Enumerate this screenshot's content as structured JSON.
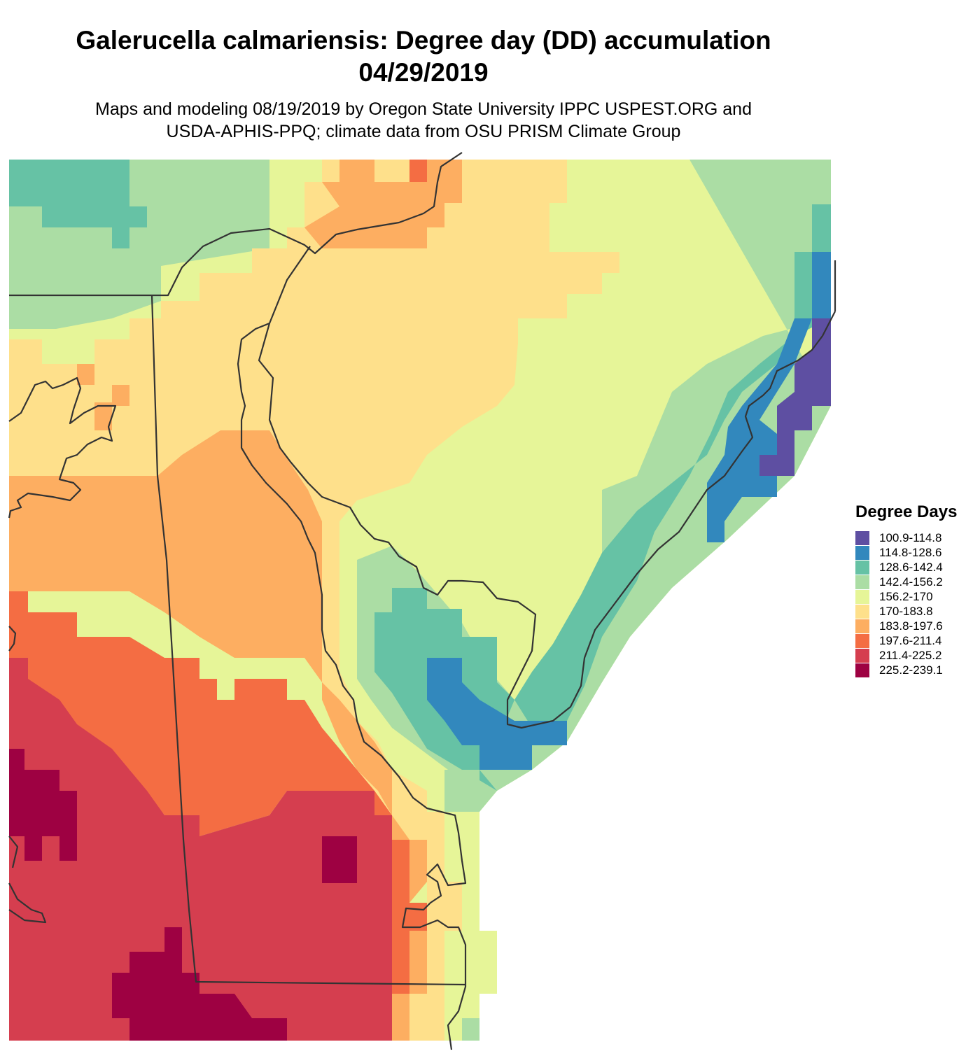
{
  "title": {
    "line1": "Galerucella calmariensis: Degree day (DD) accumulation",
    "line2": "04/29/2019"
  },
  "subtitle": {
    "line1": "Maps and modeling 08/19/2019 by Oregon State University IPPC USPEST.ORG and",
    "line2": "USDA-APHIS-PPQ; climate data from OSU PRISM Climate Group"
  },
  "legend": {
    "title": "Degree Days",
    "items": [
      {
        "label": "100.9-114.8",
        "color": "#5E4FA2"
      },
      {
        "label": "114.8-128.6",
        "color": "#3288BD"
      },
      {
        "label": "128.6-142.4",
        "color": "#66C2A5"
      },
      {
        "label": "142.4-156.2",
        "color": "#ABDDA4"
      },
      {
        "label": "156.2-170",
        "color": "#E6F598"
      },
      {
        "label": "170-183.8",
        "color": "#FEE08B"
      },
      {
        "label": "183.8-197.6",
        "color": "#FDAE61"
      },
      {
        "label": "197.6-211.4",
        "color": "#F46D43"
      },
      {
        "label": "211.4-225.2",
        "color": "#D53E4F"
      },
      {
        "label": "225.2-239.1",
        "color": "#9E0142"
      }
    ]
  }
}
